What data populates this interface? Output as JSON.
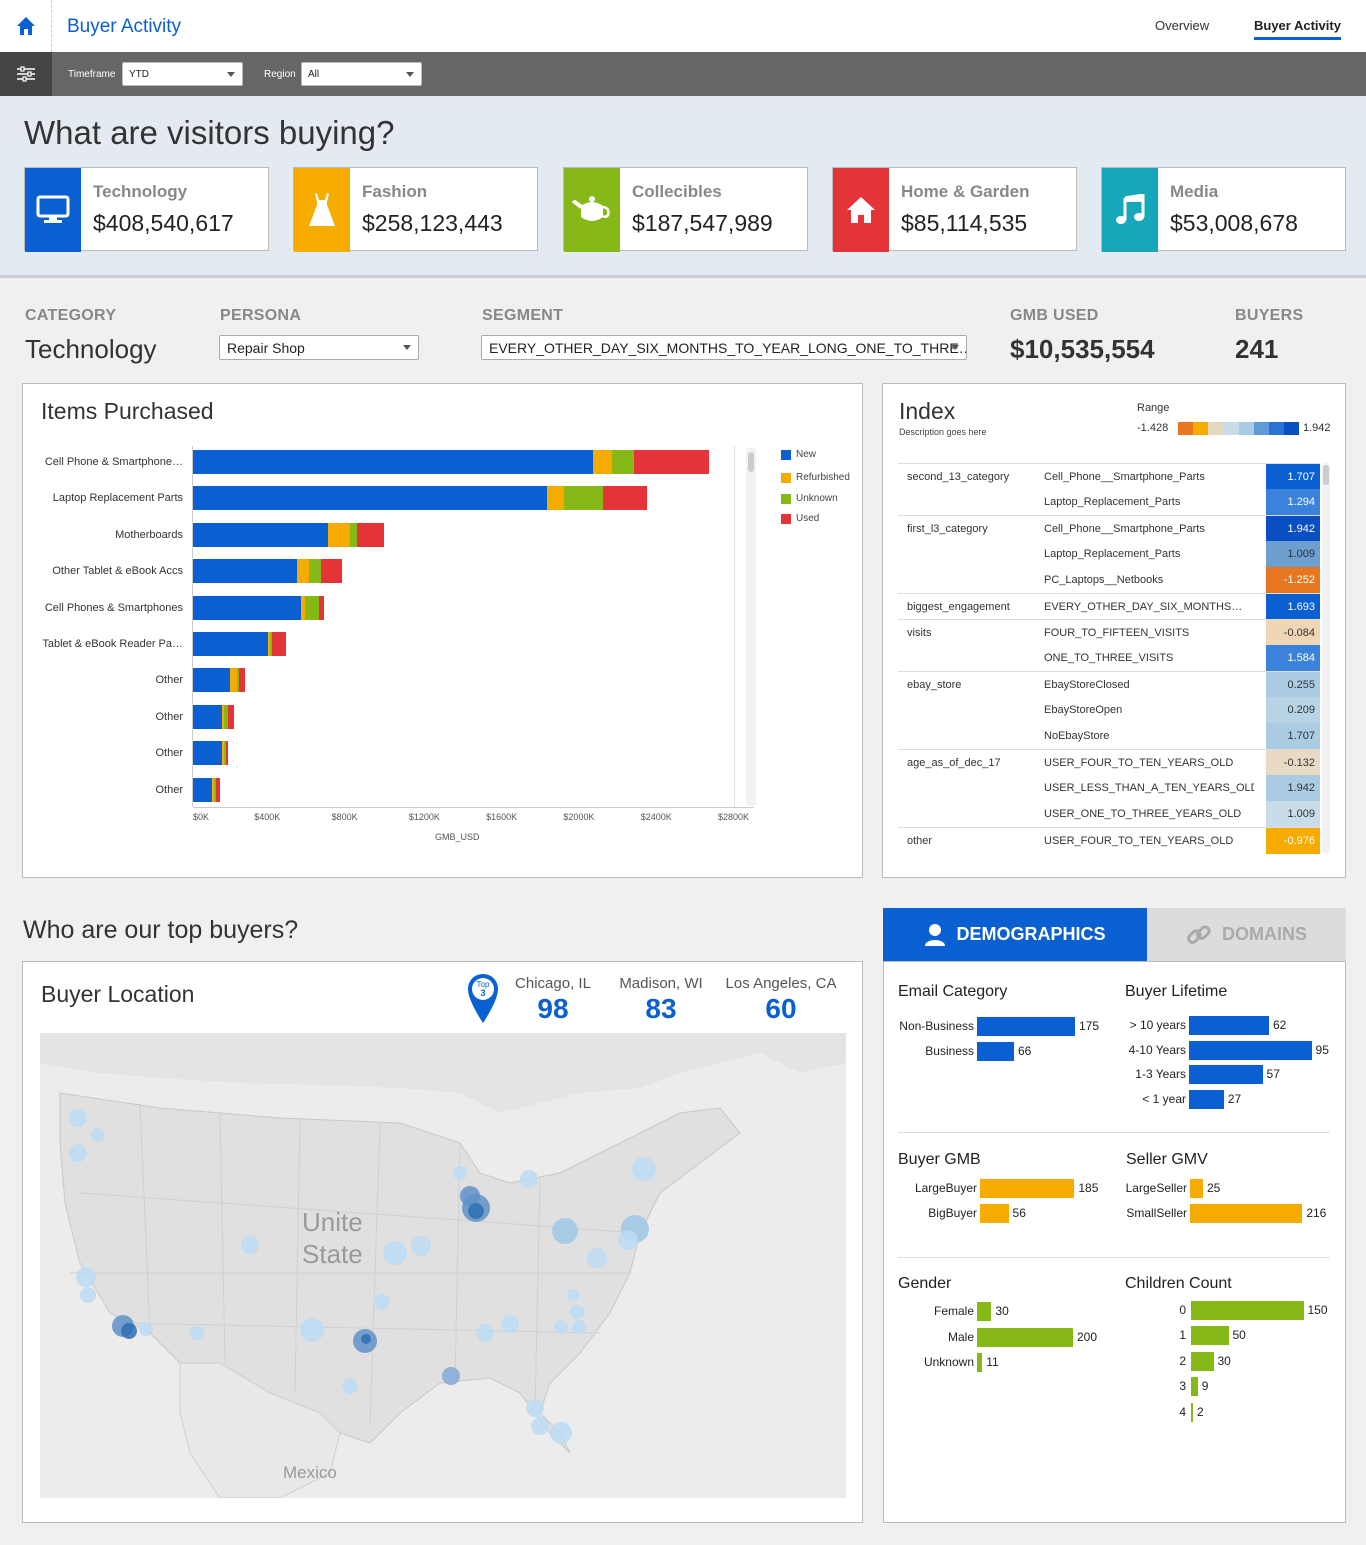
{
  "header": {
    "title": "Buyer Activity",
    "nav": {
      "overview": "Overview",
      "buyer_activity": "Buyer Activity"
    }
  },
  "filters": {
    "timeframe_label": "Timeframe",
    "timeframe_value": "YTD",
    "region_label": "Region",
    "region_value": "All"
  },
  "hero": {
    "title": "What are visitors buying?",
    "categories": [
      {
        "name": "Technology",
        "value": "$408,540,617",
        "color": "#0a5fd1",
        "icon": "monitor-icon"
      },
      {
        "name": "Fashion",
        "value": "$258,123,443",
        "color": "#f5ab00",
        "icon": "dress-icon"
      },
      {
        "name": "Collecibles",
        "value": "$187,547,989",
        "color": "#86b817",
        "icon": "teapot-icon"
      },
      {
        "name": "Home & Garden",
        "value": "$85,114,535",
        "color": "#e5333a",
        "icon": "house-icon"
      },
      {
        "name": "Media",
        "value": "$53,008,678",
        "color": "#16a8b9",
        "icon": "music-note-icon"
      }
    ]
  },
  "summary": {
    "category_label": "CATEGORY",
    "category_value": "Technology",
    "persona_label": "PERSONA",
    "persona_value": "Repair Shop",
    "segment_label": "SEGMENT",
    "segment_value": "EVERY_OTHER_DAY_SIX_MONTHS_TO_YEAR_LONG_ONE_TO_THRE…",
    "gmb_label": "GMB USED",
    "gmb_value": "$10,535,554",
    "buyers_label": "BUYERS",
    "buyers_value": "241"
  },
  "chart_data": {
    "type": "bar",
    "orientation": "horizontal",
    "stacked": true,
    "title": "Items Purchased",
    "xlabel": "GMB_USD",
    "xlim": [
      0,
      2800000
    ],
    "x_ticks": [
      "$0K",
      "$400K",
      "$800K",
      "$1200K",
      "$1600K",
      "$2000K",
      "$2400K",
      "$2800K"
    ],
    "categories": [
      "Cell Phone & Smartphone…",
      "Laptop Replacement Parts",
      "Motherboards",
      "Other Tablet & eBook Accs",
      "Cell Phones & Smartphones",
      "Tablet & eBook Reader Pa…",
      "Other",
      "Other",
      "Other",
      "Other"
    ],
    "series": [
      {
        "name": "New",
        "color": "#0a5fd1",
        "values": [
          2070000,
          1830000,
          700000,
          540000,
          560000,
          390000,
          190000,
          150000,
          150000,
          100000
        ]
      },
      {
        "name": "Refurbished",
        "color": "#f5ab00",
        "values": [
          100000,
          90000,
          110000,
          60000,
          20000,
          10000,
          40000,
          10000,
          10000,
          10000
        ]
      },
      {
        "name": "Unknown",
        "color": "#86b817",
        "values": [
          110000,
          200000,
          40000,
          60000,
          70000,
          10000,
          10000,
          20000,
          10000,
          10000
        ]
      },
      {
        "name": "Used",
        "color": "#e5333a",
        "values": [
          390000,
          230000,
          140000,
          110000,
          30000,
          70000,
          30000,
          30000,
          10000,
          20000
        ]
      }
    ]
  },
  "index": {
    "title": "Index",
    "description": "Description goes here",
    "range_label": "Range",
    "range_min": "-1.428",
    "range_max": "1.942",
    "range_colors": [
      "#e87722",
      "#f5ab00",
      "#e5d8c0",
      "#c9dde9",
      "#a9cce3",
      "#5e9bd8",
      "#2a73d3",
      "#0a4fc1"
    ],
    "rows": [
      {
        "group": "second_13_category",
        "name": "Cell_Phone__Smartphone_Parts",
        "value": "1.707",
        "color": "#0a5fd1"
      },
      {
        "group": "",
        "name": "Laptop_Replacement_Parts",
        "value": "1.294",
        "color": "#3b82db"
      },
      {
        "group": "first_l3_category",
        "name": "Cell_Phone__Smartphone_Parts",
        "value": "1.942",
        "color": "#0a4fc1"
      },
      {
        "group": "",
        "name": "Laptop_Replacement_Parts",
        "value": "1.009",
        "color": "#6d9fd0"
      },
      {
        "group": "",
        "name": "PC_Laptops__Netbooks",
        "value": "-1.252",
        "color": "#e87722"
      },
      {
        "group": "biggest_engagement",
        "name": "EVERY_OTHER_DAY_SIX_MONTHS…",
        "value": "1.693",
        "color": "#0a5fd1"
      },
      {
        "group": "visits",
        "name": "FOUR_TO_FIFTEEN_VISITS",
        "value": "-0.084",
        "color": "#efd6b4"
      },
      {
        "group": "",
        "name": "ONE_TO_THREE_VISITS",
        "value": "1.584",
        "color": "#3b82db"
      },
      {
        "group": "ebay_store",
        "name": "EbayStoreClosed",
        "value": "0.255",
        "color": "#a9cce3"
      },
      {
        "group": "",
        "name": "EbayStoreOpen",
        "value": "0.209",
        "color": "#b6d4e6"
      },
      {
        "group": "",
        "name": "NoEbayStore",
        "value": "1.707",
        "color": "#a9cce3"
      },
      {
        "group": "age_as_of_dec_17",
        "name": "USER_FOUR_TO_TEN_YEARS_OLD",
        "value": "-0.132",
        "color": "#e8dac5"
      },
      {
        "group": "",
        "name": "USER_LESS_THAN_A_TEN_YEARS_OLD",
        "value": "1.942",
        "color": "#a9cce3"
      },
      {
        "group": "",
        "name": "USER_ONE_TO_THREE_YEARS_OLD",
        "value": "1.009",
        "color": "#c9dde9"
      },
      {
        "group": "other",
        "name": "USER_FOUR_TO_TEN_YEARS_OLD",
        "value": "-0.976",
        "color": "#f5ab00"
      }
    ]
  },
  "buyers": {
    "title": "Who are our top buyers?",
    "location_title": "Buyer Location",
    "top_badge": "Top",
    "top_badge_num": "3",
    "top_cities": [
      {
        "city": "Chicago, IL",
        "count": "98"
      },
      {
        "city": "Madison, WI",
        "count": "83"
      },
      {
        "city": "Los Angeles, CA",
        "count": "60"
      }
    ],
    "map_labels": {
      "us_line1": "Unite",
      "us_line2": "State",
      "mexico": "Mexico"
    }
  },
  "tabs": {
    "demographics": "DEMOGRAPHICS",
    "domains": "DOMAINS"
  },
  "demographics": {
    "email": {
      "title": "Email Category",
      "color": "#0a5fd1",
      "items": [
        {
          "label": "Non-Business",
          "value": 175
        },
        {
          "label": "Business",
          "value": 66
        }
      ]
    },
    "lifetime": {
      "title": "Buyer Lifetime",
      "color": "#0a5fd1",
      "items": [
        {
          "label": "> 10 years",
          "value": 62
        },
        {
          "label": "4-10 Years",
          "value": 95
        },
        {
          "label": "1-3 Years",
          "value": 57
        },
        {
          "label": "< 1 year",
          "value": 27
        }
      ]
    },
    "buyer_gmb": {
      "title": "Buyer GMB",
      "color": "#f5ab00",
      "items": [
        {
          "label": "LargeBuyer",
          "value": 185
        },
        {
          "label": "BigBuyer",
          "value": 56
        }
      ]
    },
    "seller_gmv": {
      "title": "Seller GMV",
      "color": "#f5ab00",
      "items": [
        {
          "label": "LargeSeller",
          "value": 25
        },
        {
          "label": "SmallSeller",
          "value": 216
        }
      ]
    },
    "gender": {
      "title": "Gender",
      "color": "#86b817",
      "items": [
        {
          "label": "Female",
          "value": 30
        },
        {
          "label": "Male",
          "value": 200
        },
        {
          "label": "Unknown",
          "value": 11
        }
      ]
    },
    "children": {
      "title": "Children Count",
      "color": "#86b817",
      "items": [
        {
          "label": "0",
          "value": 150
        },
        {
          "label": "1",
          "value": 50
        },
        {
          "label": "2",
          "value": 30
        },
        {
          "label": "3",
          "value": 9
        },
        {
          "label": "4",
          "value": 2
        }
      ]
    }
  }
}
